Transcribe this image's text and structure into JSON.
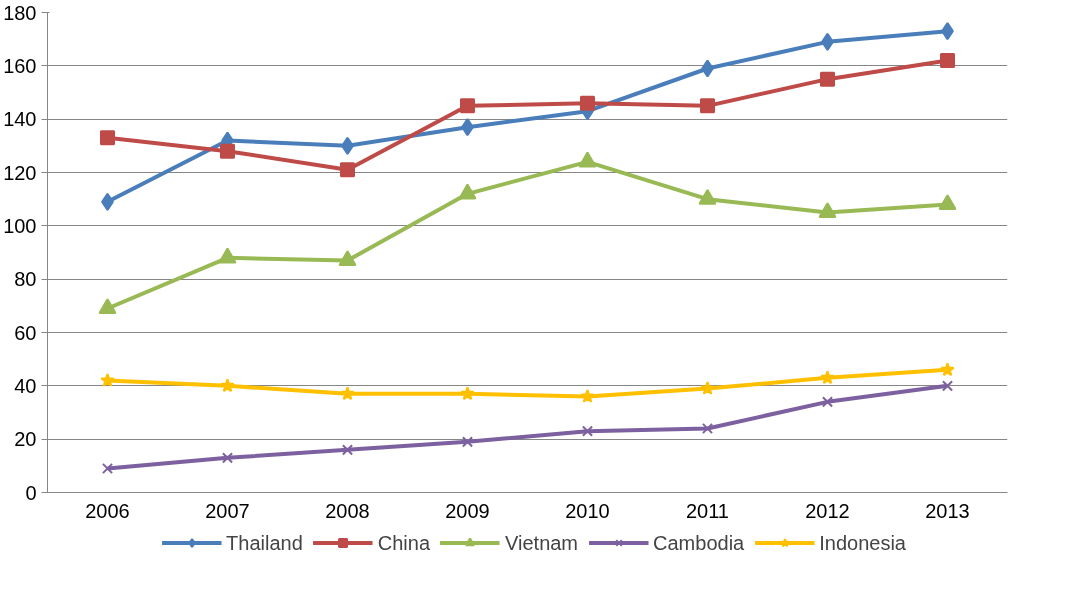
{
  "chart_data": {
    "type": "line",
    "categories": [
      "2006",
      "2007",
      "2008",
      "2009",
      "2010",
      "2011",
      "2012",
      "2013"
    ],
    "series": [
      {
        "name": "Thailand",
        "color": "#4a7ebb",
        "marker": "diamond",
        "values": [
          109,
          132,
          130,
          137,
          143,
          159,
          169,
          173
        ]
      },
      {
        "name": "China",
        "color": "#be4b48",
        "marker": "square",
        "values": [
          133,
          128,
          121,
          145,
          146,
          145,
          155,
          162
        ]
      },
      {
        "name": "Vietnam",
        "color": "#98b954",
        "marker": "triangle",
        "values": [
          69,
          88,
          87,
          112,
          124,
          110,
          105,
          108
        ]
      },
      {
        "name": "Cambodia",
        "color": "#7d60a0",
        "marker": "cross",
        "values": [
          9,
          13,
          16,
          19,
          23,
          24,
          34,
          40
        ]
      },
      {
        "name": "Indonesia",
        "color": "#ffc000",
        "marker": "star",
        "values": [
          42,
          40,
          37,
          37,
          36,
          39,
          43,
          46
        ]
      }
    ],
    "ylim": [
      0,
      180
    ],
    "yticks": [
      0,
      20,
      40,
      60,
      80,
      100,
      120,
      140,
      160,
      180
    ],
    "grid": "y",
    "legend": "bottom",
    "line_style": "solid"
  }
}
